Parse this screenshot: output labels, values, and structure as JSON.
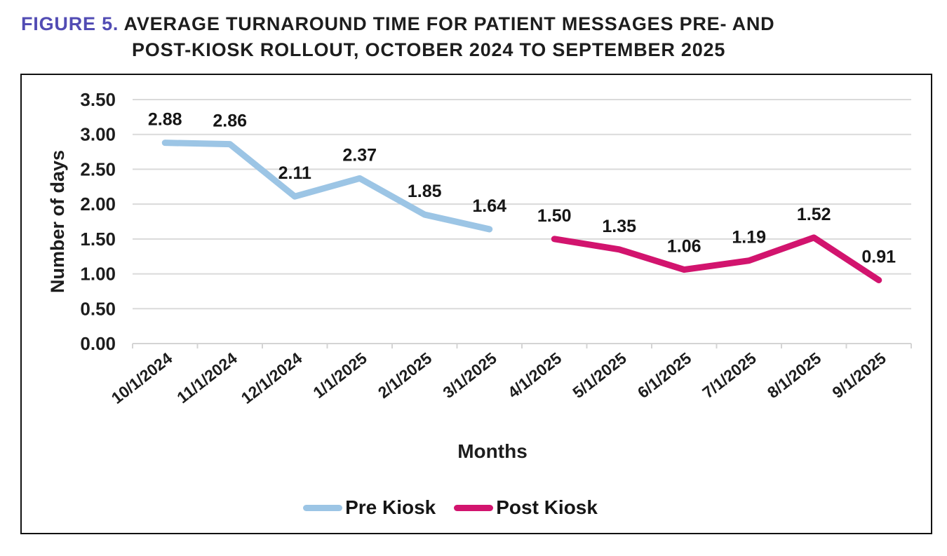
{
  "figure": {
    "label": "FIGURE 5.",
    "title_line1": "AVERAGE TURNAROUND TIME FOR PATIENT MESSAGES PRE- AND",
    "title_line2": "POST-KIOSK ROLLOUT, OCTOBER 2024 TO SEPTEMBER 2025",
    "label_color": "#524cb4"
  },
  "chart_data": {
    "type": "line",
    "title": "Average turnaround time for patient messages pre- and post-kiosk rollout",
    "x": [
      "10/1/2024",
      "11/1/2024",
      "12/1/2024",
      "1/1/2025",
      "2/1/2025",
      "3/1/2025",
      "4/1/2025",
      "5/1/2025",
      "6/1/2025",
      "7/1/2025",
      "8/1/2025",
      "9/1/2025"
    ],
    "series": [
      {
        "name": "Pre Kiosk",
        "color": "#9cc5e5",
        "values": [
          2.88,
          2.86,
          2.11,
          2.37,
          1.85,
          1.64,
          null,
          null,
          null,
          null,
          null,
          null
        ]
      },
      {
        "name": "Post Kiosk",
        "color": "#d2146e",
        "values": [
          null,
          null,
          null,
          null,
          null,
          null,
          1.5,
          1.35,
          1.06,
          1.19,
          1.52,
          0.91
        ]
      }
    ],
    "xlabel": "Months",
    "ylabel": "Number of days",
    "ylim": [
      0,
      3.5
    ],
    "ytick_step": 0.5,
    "grid": true,
    "grid_color": "#dadada",
    "axis_color": "#d4d4d4",
    "legend_position": "bottom"
  }
}
